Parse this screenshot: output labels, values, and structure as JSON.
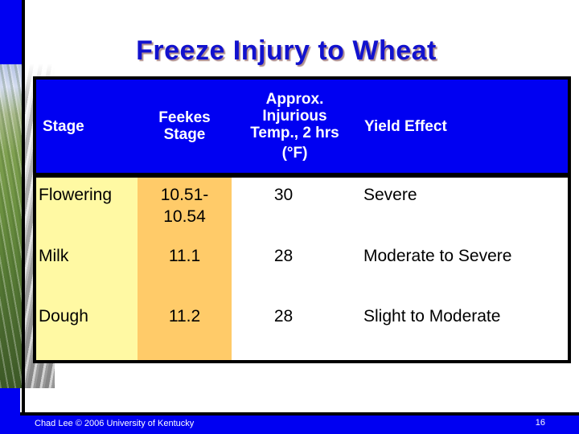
{
  "slide": {
    "title": "Freeze Injury to Wheat",
    "table": {
      "col_headers": [
        {
          "label": "Stage"
        },
        {
          "label": "Feekes Stage"
        },
        {
          "lines": [
            "Approx.",
            "Injurious",
            "Temp., 2 hrs",
            "(°F)"
          ]
        },
        {
          "label": "Yield Effect"
        }
      ],
      "rows": [
        {
          "stage": "Flowering",
          "feekes_stage": "10.51-10.54",
          "injurious_temp_f": "30",
          "yield_effect": "Severe"
        },
        {
          "stage": "Milk",
          "feekes_stage": "11.1",
          "injurious_temp_f": "28",
          "yield_effect": "Moderate to Severe"
        },
        {
          "stage": "Dough",
          "feekes_stage": "11.2",
          "injurious_temp_f": "28",
          "yield_effect": "Slight to Moderate"
        }
      ]
    },
    "footer": {
      "credit": "Chad Lee © 2006 University of Kentucky",
      "slide_number": "16"
    }
  },
  "colors": {
    "header-bg": "#0000F2",
    "footer-bg": "#0000F2",
    "accent-bar-blue": "#0000F2",
    "title-text": "#1212CE",
    "stage-col-bg": "#FFF9A3",
    "feekes-col-bg": "#FFCB69",
    "header-text": "#FFFFFF",
    "body-text": "#000000"
  }
}
